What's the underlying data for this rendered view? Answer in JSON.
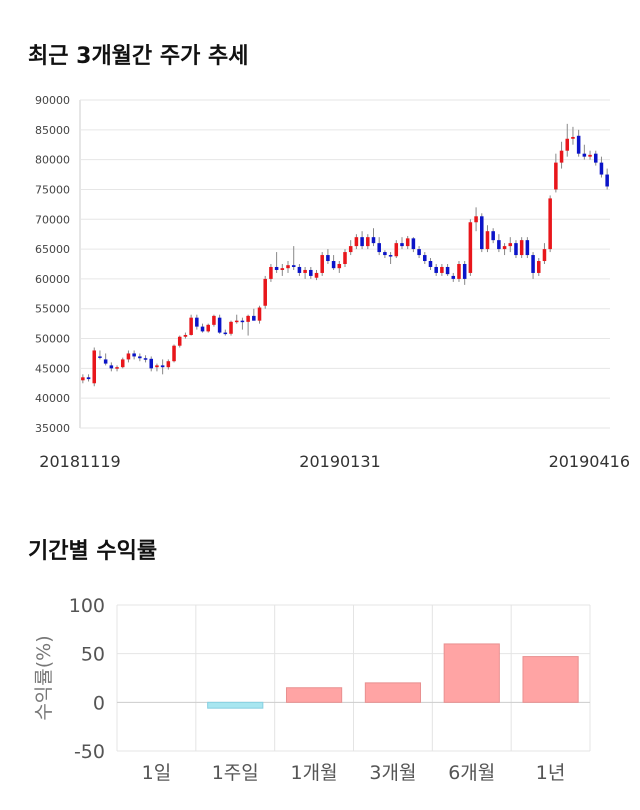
{
  "sections": {
    "price_trend_title": "최근 3개월간 주가 추세",
    "returns_title": "기간별 수익률"
  },
  "colors": {
    "up": "#e8161b",
    "down": "#0b14c8",
    "grid": "#e6e6e6",
    "bar_positive": "#ffa4a4",
    "bar_negative": "#a8e6f0"
  },
  "chart_data": [
    {
      "type": "candlestick",
      "y_ticks": [
        "90000",
        "85000",
        "80000",
        "75000",
        "70000",
        "65000",
        "60000",
        "55000",
        "50000",
        "45000",
        "40000",
        "35000"
      ],
      "x_ticks": [
        "20181119",
        "20190131",
        "20190416"
      ],
      "ylim": [
        35000,
        90000
      ],
      "grid": true,
      "candles": [
        [
          43000,
          44000,
          42500,
          43500
        ],
        [
          43500,
          44000,
          42800,
          43200
        ],
        [
          42500,
          48500,
          42000,
          48000
        ],
        [
          47000,
          48000,
          46500,
          46800
        ],
        [
          46500,
          47500,
          45500,
          45800
        ],
        [
          45500,
          46000,
          44500,
          45000
        ],
        [
          45000,
          45500,
          44500,
          45200
        ],
        [
          45200,
          46800,
          45000,
          46500
        ],
        [
          46500,
          48000,
          46000,
          47500
        ],
        [
          47500,
          48000,
          46500,
          47000
        ],
        [
          47000,
          47500,
          46200,
          46700
        ],
        [
          46700,
          47200,
          46000,
          46600
        ],
        [
          46600,
          47000,
          44500,
          45000
        ],
        [
          45200,
          45800,
          44500,
          45500
        ],
        [
          45500,
          46500,
          44000,
          45200
        ],
        [
          45200,
          46500,
          44800,
          46200
        ],
        [
          46200,
          49000,
          46000,
          48800
        ],
        [
          48800,
          50500,
          48500,
          50300
        ],
        [
          50300,
          51000,
          50000,
          50600
        ],
        [
          50600,
          54000,
          50500,
          53500
        ],
        [
          53500,
          54000,
          51500,
          52000
        ],
        [
          52000,
          52500,
          51000,
          51200
        ],
        [
          51200,
          52500,
          51000,
          52300
        ],
        [
          52300,
          54000,
          52000,
          53800
        ],
        [
          53500,
          54000,
          50800,
          51000
        ],
        [
          51000,
          51500,
          50500,
          50800
        ],
        [
          50800,
          53000,
          50500,
          52800
        ],
        [
          52800,
          54000,
          52500,
          53000
        ],
        [
          53000,
          53500,
          51500,
          52800
        ],
        [
          52800,
          54000,
          50500,
          53800
        ],
        [
          53800,
          55000,
          53000,
          53000
        ],
        [
          53000,
          55500,
          52500,
          55200
        ],
        [
          55500,
          60500,
          55000,
          60000
        ],
        [
          60000,
          62500,
          59500,
          62000
        ],
        [
          62000,
          64500,
          61000,
          61500
        ],
        [
          61500,
          62500,
          60500,
          61800
        ],
        [
          61800,
          63000,
          61000,
          62300
        ],
        [
          62300,
          65500,
          61500,
          62000
        ],
        [
          62000,
          62500,
          60500,
          61000
        ],
        [
          61000,
          62000,
          60000,
          61500
        ],
        [
          61500,
          62000,
          60000,
          60500
        ],
        [
          60200,
          61500,
          59800,
          61000
        ],
        [
          61000,
          64500,
          60500,
          64000
        ],
        [
          64000,
          65000,
          62500,
          63000
        ],
        [
          63000,
          64000,
          61500,
          61800
        ],
        [
          61800,
          63000,
          61000,
          62500
        ],
        [
          62500,
          65000,
          62000,
          64500
        ],
        [
          64500,
          66500,
          64000,
          65500
        ],
        [
          65500,
          67500,
          65000,
          67000
        ],
        [
          67000,
          68000,
          65000,
          65500
        ],
        [
          65500,
          67500,
          65000,
          67000
        ],
        [
          67000,
          68500,
          65500,
          66000
        ],
        [
          66000,
          67000,
          64000,
          64500
        ],
        [
          64500,
          64800,
          63500,
          64000
        ],
        [
          64000,
          64500,
          62500,
          63800
        ],
        [
          63800,
          66500,
          63500,
          66000
        ],
        [
          66000,
          67000,
          65000,
          65500
        ],
        [
          65500,
          67200,
          65000,
          66800
        ],
        [
          66800,
          67000,
          64500,
          65000
        ],
        [
          65000,
          65500,
          63500,
          64000
        ],
        [
          64000,
          64500,
          62500,
          63000
        ],
        [
          63000,
          63500,
          61500,
          62000
        ],
        [
          62000,
          62500,
          60500,
          61000
        ],
        [
          61000,
          62500,
          60500,
          62000
        ],
        [
          62000,
          62500,
          60500,
          60800
        ],
        [
          60500,
          61000,
          59500,
          60000
        ],
        [
          60000,
          63000,
          59500,
          62500
        ],
        [
          62500,
          63000,
          59000,
          60000
        ],
        [
          61000,
          70000,
          60500,
          69500
        ],
        [
          69500,
          72000,
          68000,
          70500
        ],
        [
          70500,
          71000,
          64500,
          65000
        ],
        [
          65000,
          69000,
          64500,
          68000
        ],
        [
          68000,
          68500,
          66000,
          66500
        ],
        [
          66500,
          67500,
          64500,
          65000
        ],
        [
          65000,
          66000,
          64000,
          65500
        ],
        [
          65500,
          67000,
          64500,
          66000
        ],
        [
          66000,
          66500,
          63500,
          64000
        ],
        [
          64000,
          67000,
          63500,
          66500
        ],
        [
          66500,
          67000,
          63500,
          64000
        ],
        [
          64000,
          64500,
          60000,
          61000
        ],
        [
          61000,
          63500,
          60500,
          63000
        ],
        [
          63000,
          66000,
          62500,
          65000
        ],
        [
          65000,
          74000,
          64500,
          73500
        ],
        [
          75000,
          81000,
          74500,
          79500
        ],
        [
          79500,
          83000,
          78500,
          81500
        ],
        [
          81500,
          86000,
          80500,
          83500
        ],
        [
          83500,
          85500,
          82500,
          83800
        ],
        [
          84000,
          85000,
          80500,
          81000
        ],
        [
          81000,
          82500,
          80000,
          80500
        ],
        [
          80500,
          81500,
          80000,
          80800
        ],
        [
          81000,
          81500,
          79000,
          79500
        ],
        [
          79500,
          80500,
          77000,
          77500
        ],
        [
          77500,
          78500,
          75000,
          75500
        ]
      ]
    },
    {
      "type": "bar",
      "ylabel": "수익률(%)",
      "ylim": [
        -50,
        100
      ],
      "y_ticks": [
        "100",
        "50",
        "0",
        "-50"
      ],
      "categories": [
        "1일",
        "1주일",
        "1개월",
        "3개월",
        "6개월",
        "1년"
      ],
      "values": [
        0,
        -6,
        15,
        20,
        60,
        47
      ],
      "grid": true
    }
  ]
}
